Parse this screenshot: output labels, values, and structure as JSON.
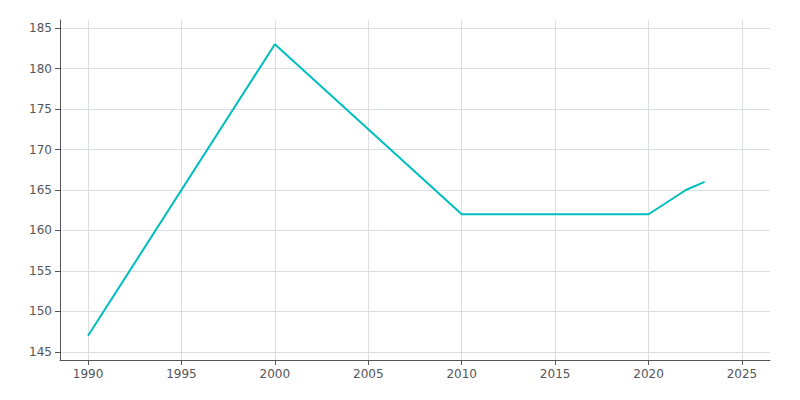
{
  "chart_data": {
    "type": "line",
    "x": [
      1990,
      2000,
      2010,
      2015,
      2020,
      2022,
      2023
    ],
    "values": [
      147,
      183,
      162,
      162,
      162,
      165,
      166
    ],
    "color": "#00BEBE",
    "xlim": [
      1988.5,
      2026.5
    ],
    "xticks": [
      1990,
      1995,
      2000,
      2005,
      2010,
      2015,
      2020,
      2025
    ],
    "ylim": [
      144,
      186
    ],
    "yticks": [
      145,
      150,
      155,
      160,
      165,
      170,
      175,
      180,
      185
    ],
    "grid": true
  }
}
